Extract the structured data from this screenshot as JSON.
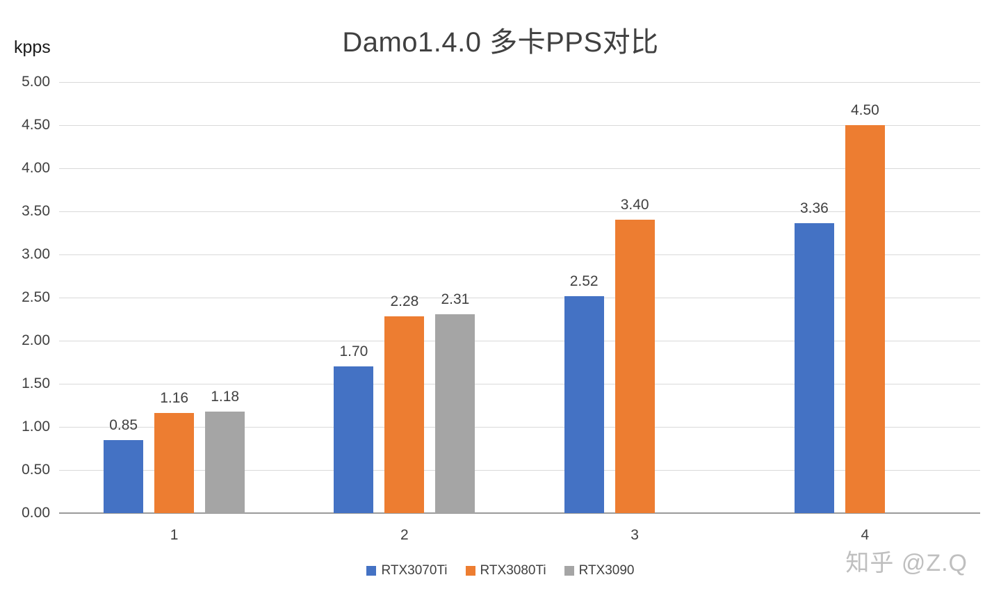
{
  "title": "Damo1.4.0 多卡PPS对比",
  "y_axis_unit": "kpps",
  "watermark": "知乎 @Z.Q",
  "chart_data": {
    "type": "bar",
    "title": "Damo1.4.0 多卡PPS对比",
    "categories": [
      "1",
      "2",
      "3",
      "4"
    ],
    "series": [
      {
        "name": "RTX3070Ti",
        "color": "#4472C4",
        "values": [
          0.85,
          1.7,
          2.52,
          3.36
        ]
      },
      {
        "name": "RTX3080Ti",
        "color": "#ED7D31",
        "values": [
          1.16,
          2.28,
          3.4,
          4.5
        ]
      },
      {
        "name": "RTX3090",
        "color": "#A5A5A5",
        "values": [
          1.18,
          2.31,
          null,
          null
        ]
      }
    ],
    "xlabel": "",
    "ylabel": "kpps",
    "ylim": [
      0,
      5
    ],
    "ytick_step": 0.5,
    "grid": true,
    "legend_position": "bottom"
  }
}
